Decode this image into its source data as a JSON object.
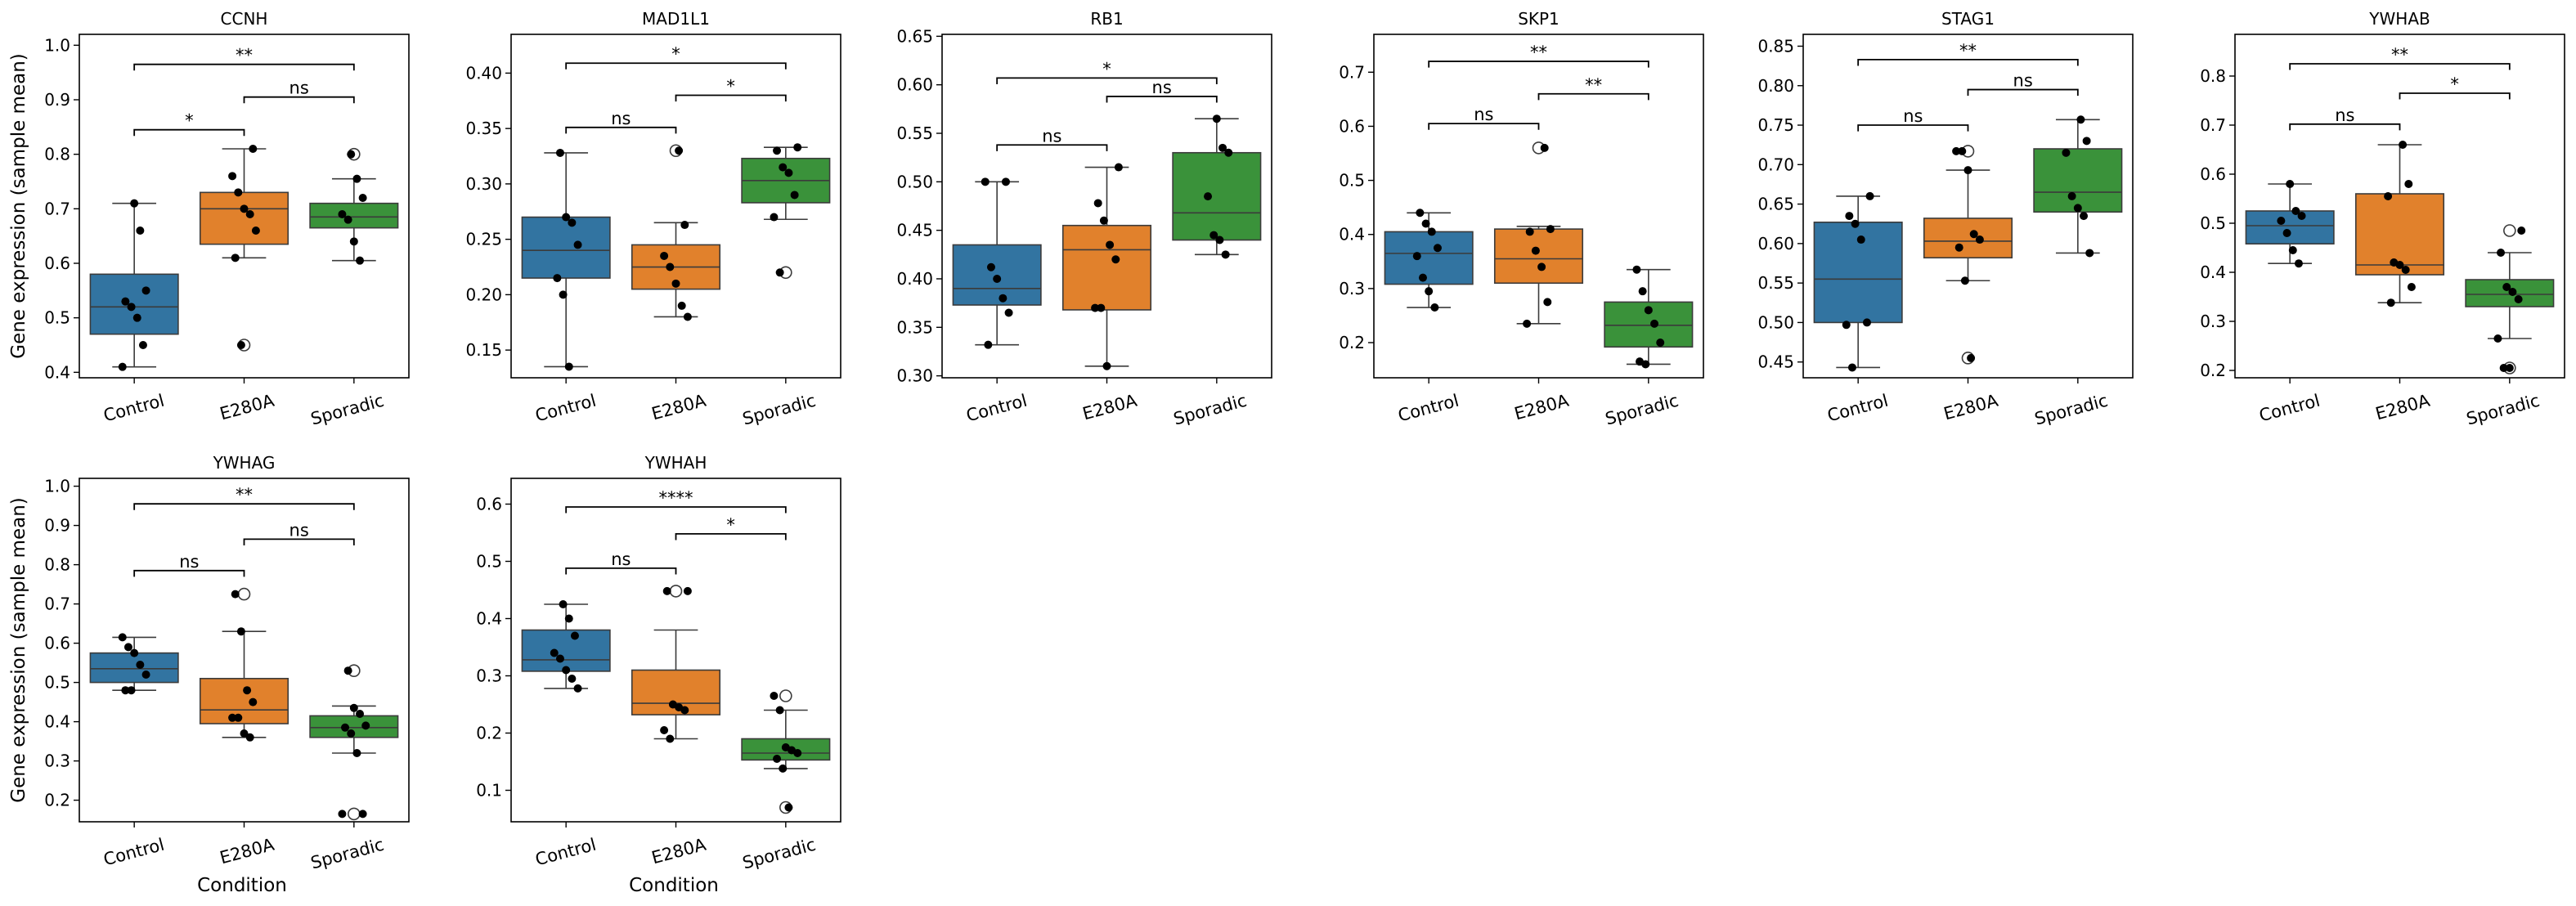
{
  "figure": {
    "ylabel": "Gene expression (sample mean)",
    "xlabel": "Condition",
    "group_colors": {
      "Control": "#3274a1",
      "E280A": "#e1812c",
      "Sporadic": "#3a923a"
    }
  },
  "chart_data": [
    {
      "type": "box",
      "title": "CCNH",
      "categories": [
        "Control",
        "E280A",
        "Sporadic"
      ],
      "ylim": [
        0.39,
        1.02
      ],
      "yticks": [
        0.4,
        0.5,
        0.6,
        0.7,
        0.8,
        0.9,
        1.0
      ],
      "tick_decimals": 1,
      "boxes": [
        {
          "q1": 0.47,
          "median": 0.52,
          "q3": 0.58,
          "whislo": 0.41,
          "whishi": 0.71,
          "fliers": []
        },
        {
          "q1": 0.635,
          "median": 0.7,
          "q3": 0.73,
          "whislo": 0.61,
          "whishi": 0.81,
          "fliers": [
            0.45
          ]
        },
        {
          "q1": 0.665,
          "median": 0.685,
          "q3": 0.71,
          "whislo": 0.605,
          "whishi": 0.755,
          "fliers": [
            0.8
          ]
        }
      ],
      "points": [
        [
          0.41,
          0.45,
          0.5,
          0.52,
          0.53,
          0.55,
          0.66,
          0.71
        ],
        [
          0.45,
          0.61,
          0.66,
          0.69,
          0.7,
          0.73,
          0.76,
          0.81
        ],
        [
          0.605,
          0.64,
          0.68,
          0.69,
          0.72,
          0.755,
          0.8
        ]
      ],
      "brackets": [
        {
          "from": 0,
          "to": 1,
          "y": 0.845,
          "label": "*"
        },
        {
          "from": 1,
          "to": 2,
          "y": 0.905,
          "label": "ns"
        },
        {
          "from": 0,
          "to": 2,
          "y": 0.965,
          "label": "**"
        }
      ]
    },
    {
      "type": "box",
      "title": "MAD1L1",
      "categories": [
        "Control",
        "E280A",
        "Sporadic"
      ],
      "ylim": [
        0.125,
        0.435
      ],
      "yticks": [
        0.15,
        0.2,
        0.25,
        0.3,
        0.35,
        0.4
      ],
      "tick_decimals": 2,
      "boxes": [
        {
          "q1": 0.215,
          "median": 0.24,
          "q3": 0.27,
          "whislo": 0.135,
          "whishi": 0.328,
          "fliers": []
        },
        {
          "q1": 0.205,
          "median": 0.225,
          "q3": 0.245,
          "whislo": 0.18,
          "whishi": 0.265,
          "fliers": [
            0.33
          ]
        },
        {
          "q1": 0.283,
          "median": 0.303,
          "q3": 0.323,
          "whislo": 0.268,
          "whishi": 0.333,
          "fliers": [
            0.22
          ]
        }
      ],
      "points": [
        [
          0.135,
          0.2,
          0.215,
          0.245,
          0.265,
          0.27,
          0.328
        ],
        [
          0.18,
          0.19,
          0.21,
          0.225,
          0.235,
          0.263,
          0.33
        ],
        [
          0.22,
          0.27,
          0.29,
          0.31,
          0.315,
          0.33,
          0.333
        ]
      ],
      "brackets": [
        {
          "from": 0,
          "to": 1,
          "y": 0.351,
          "label": "ns"
        },
        {
          "from": 1,
          "to": 2,
          "y": 0.38,
          "label": "*"
        },
        {
          "from": 0,
          "to": 2,
          "y": 0.409,
          "label": "*"
        }
      ]
    },
    {
      "type": "box",
      "title": "RB1",
      "categories": [
        "Control",
        "E280A",
        "Sporadic"
      ],
      "ylim": [
        0.298,
        0.652
      ],
      "yticks": [
        0.3,
        0.35,
        0.4,
        0.45,
        0.5,
        0.55,
        0.6,
        0.65
      ],
      "tick_decimals": 2,
      "boxes": [
        {
          "q1": 0.373,
          "median": 0.39,
          "q3": 0.435,
          "whislo": 0.332,
          "whishi": 0.5,
          "fliers": []
        },
        {
          "q1": 0.368,
          "median": 0.43,
          "q3": 0.455,
          "whislo": 0.31,
          "whishi": 0.515,
          "fliers": []
        },
        {
          "q1": 0.44,
          "median": 0.468,
          "q3": 0.53,
          "whislo": 0.425,
          "whishi": 0.565,
          "fliers": []
        }
      ],
      "points": [
        [
          0.332,
          0.365,
          0.38,
          0.4,
          0.412,
          0.5,
          0.5
        ],
        [
          0.31,
          0.37,
          0.37,
          0.42,
          0.435,
          0.46,
          0.478,
          0.515
        ],
        [
          0.425,
          0.44,
          0.445,
          0.485,
          0.53,
          0.535,
          0.565
        ]
      ],
      "brackets": [
        {
          "from": 0,
          "to": 1,
          "y": 0.538,
          "label": "ns"
        },
        {
          "from": 1,
          "to": 2,
          "y": 0.588,
          "label": "ns"
        },
        {
          "from": 0,
          "to": 2,
          "y": 0.607,
          "label": "*"
        }
      ]
    },
    {
      "type": "box",
      "title": "SKP1",
      "categories": [
        "Control",
        "E280A",
        "Sporadic"
      ],
      "ylim": [
        0.135,
        0.77
      ],
      "yticks": [
        0.2,
        0.3,
        0.4,
        0.5,
        0.6,
        0.7
      ],
      "tick_decimals": 1,
      "boxes": [
        {
          "q1": 0.308,
          "median": 0.365,
          "q3": 0.405,
          "whislo": 0.265,
          "whishi": 0.44,
          "fliers": []
        },
        {
          "q1": 0.31,
          "median": 0.355,
          "q3": 0.41,
          "whislo": 0.235,
          "whishi": 0.415,
          "fliers": [
            0.56
          ]
        },
        {
          "q1": 0.192,
          "median": 0.232,
          "q3": 0.275,
          "whislo": 0.16,
          "whishi": 0.335,
          "fliers": []
        }
      ],
      "points": [
        [
          0.265,
          0.295,
          0.32,
          0.36,
          0.375,
          0.405,
          0.42,
          0.44
        ],
        [
          0.235,
          0.275,
          0.34,
          0.37,
          0.405,
          0.41,
          0.56
        ],
        [
          0.16,
          0.165,
          0.2,
          0.235,
          0.26,
          0.295,
          0.335
        ]
      ],
      "brackets": [
        {
          "from": 0,
          "to": 1,
          "y": 0.605,
          "label": "ns"
        },
        {
          "from": 1,
          "to": 2,
          "y": 0.66,
          "label": "**"
        },
        {
          "from": 0,
          "to": 2,
          "y": 0.72,
          "label": "**"
        }
      ]
    },
    {
      "type": "box",
      "title": "STAG1",
      "categories": [
        "Control",
        "E280A",
        "Sporadic"
      ],
      "ylim": [
        0.43,
        0.865
      ],
      "yticks": [
        0.45,
        0.5,
        0.55,
        0.6,
        0.65,
        0.7,
        0.75,
        0.8,
        0.85
      ],
      "tick_decimals": 2,
      "boxes": [
        {
          "q1": 0.5,
          "median": 0.555,
          "q3": 0.627,
          "whislo": 0.443,
          "whishi": 0.66,
          "fliers": []
        },
        {
          "q1": 0.582,
          "median": 0.603,
          "q3": 0.632,
          "whislo": 0.553,
          "whishi": 0.693,
          "fliers": [
            0.455,
            0.717
          ]
        },
        {
          "q1": 0.64,
          "median": 0.665,
          "q3": 0.72,
          "whislo": 0.588,
          "whishi": 0.757,
          "fliers": []
        }
      ],
      "points": [
        [
          0.443,
          0.497,
          0.5,
          0.605,
          0.625,
          0.635,
          0.66
        ],
        [
          0.455,
          0.553,
          0.595,
          0.605,
          0.612,
          0.693,
          0.717,
          0.717
        ],
        [
          0.588,
          0.635,
          0.645,
          0.66,
          0.715,
          0.73,
          0.757
        ]
      ],
      "brackets": [
        {
          "from": 0,
          "to": 1,
          "y": 0.75,
          "label": "ns"
        },
        {
          "from": 1,
          "to": 2,
          "y": 0.795,
          "label": "ns"
        },
        {
          "from": 0,
          "to": 2,
          "y": 0.833,
          "label": "**"
        }
      ]
    },
    {
      "type": "box",
      "title": "YWHAB",
      "categories": [
        "Control",
        "E280A",
        "Sporadic"
      ],
      "ylim": [
        0.185,
        0.885
      ],
      "yticks": [
        0.2,
        0.3,
        0.4,
        0.5,
        0.6,
        0.7,
        0.8
      ],
      "tick_decimals": 1,
      "boxes": [
        {
          "q1": 0.458,
          "median": 0.495,
          "q3": 0.525,
          "whislo": 0.418,
          "whishi": 0.58,
          "fliers": []
        },
        {
          "q1": 0.395,
          "median": 0.415,
          "q3": 0.56,
          "whislo": 0.338,
          "whishi": 0.66,
          "fliers": []
        },
        {
          "q1": 0.33,
          "median": 0.355,
          "q3": 0.385,
          "whislo": 0.265,
          "whishi": 0.44,
          "fliers": [
            0.205,
            0.485
          ]
        }
      ],
      "points": [
        [
          0.418,
          0.445,
          0.48,
          0.505,
          0.515,
          0.525,
          0.58
        ],
        [
          0.338,
          0.37,
          0.405,
          0.415,
          0.42,
          0.555,
          0.58,
          0.66
        ],
        [
          0.205,
          0.205,
          0.265,
          0.345,
          0.36,
          0.37,
          0.44,
          0.485
        ]
      ],
      "brackets": [
        {
          "from": 0,
          "to": 1,
          "y": 0.702,
          "label": "ns"
        },
        {
          "from": 1,
          "to": 2,
          "y": 0.765,
          "label": "*"
        },
        {
          "from": 0,
          "to": 2,
          "y": 0.825,
          "label": "**"
        }
      ]
    },
    {
      "type": "box",
      "title": "YWHAG",
      "categories": [
        "Control",
        "E280A",
        "Sporadic"
      ],
      "ylim": [
        0.145,
        1.02
      ],
      "yticks": [
        0.2,
        0.3,
        0.4,
        0.5,
        0.6,
        0.7,
        0.8,
        0.9,
        1.0
      ],
      "tick_decimals": 1,
      "boxes": [
        {
          "q1": 0.5,
          "median": 0.535,
          "q3": 0.575,
          "whislo": 0.48,
          "whishi": 0.615,
          "fliers": []
        },
        {
          "q1": 0.395,
          "median": 0.43,
          "q3": 0.51,
          "whislo": 0.36,
          "whishi": 0.63,
          "fliers": [
            0.725
          ]
        },
        {
          "q1": 0.36,
          "median": 0.385,
          "q3": 0.415,
          "whislo": 0.32,
          "whishi": 0.44,
          "fliers": [
            0.165,
            0.53
          ]
        }
      ],
      "points": [
        [
          0.48,
          0.48,
          0.52,
          0.545,
          0.575,
          0.59,
          0.615
        ],
        [
          0.36,
          0.37,
          0.41,
          0.41,
          0.45,
          0.48,
          0.63,
          0.725
        ],
        [
          0.165,
          0.165,
          0.32,
          0.37,
          0.385,
          0.39,
          0.42,
          0.435,
          0.53
        ]
      ],
      "brackets": [
        {
          "from": 0,
          "to": 1,
          "y": 0.785,
          "label": "ns"
        },
        {
          "from": 1,
          "to": 2,
          "y": 0.865,
          "label": "ns"
        },
        {
          "from": 0,
          "to": 2,
          "y": 0.955,
          "label": "**"
        }
      ]
    },
    {
      "type": "box",
      "title": "YWHAH",
      "categories": [
        "Control",
        "E280A",
        "Sporadic"
      ],
      "ylim": [
        0.045,
        0.645
      ],
      "yticks": [
        0.1,
        0.2,
        0.3,
        0.4,
        0.5,
        0.6
      ],
      "tick_decimals": 1,
      "boxes": [
        {
          "q1": 0.308,
          "median": 0.328,
          "q3": 0.38,
          "whislo": 0.278,
          "whishi": 0.425,
          "fliers": []
        },
        {
          "q1": 0.232,
          "median": 0.252,
          "q3": 0.31,
          "whislo": 0.19,
          "whishi": 0.38,
          "fliers": [
            0.448
          ]
        },
        {
          "q1": 0.153,
          "median": 0.165,
          "q3": 0.19,
          "whislo": 0.138,
          "whishi": 0.24,
          "fliers": [
            0.07,
            0.265
          ]
        }
      ],
      "points": [
        [
          0.278,
          0.295,
          0.31,
          0.33,
          0.34,
          0.37,
          0.4,
          0.425
        ],
        [
          0.19,
          0.205,
          0.24,
          0.245,
          0.25,
          0.448,
          0.448
        ],
        [
          0.07,
          0.138,
          0.155,
          0.165,
          0.17,
          0.175,
          0.24,
          0.265
        ]
      ],
      "brackets": [
        {
          "from": 0,
          "to": 1,
          "y": 0.488,
          "label": "ns"
        },
        {
          "from": 1,
          "to": 2,
          "y": 0.548,
          "label": "*"
        },
        {
          "from": 0,
          "to": 2,
          "y": 0.595,
          "label": "****"
        }
      ]
    }
  ]
}
